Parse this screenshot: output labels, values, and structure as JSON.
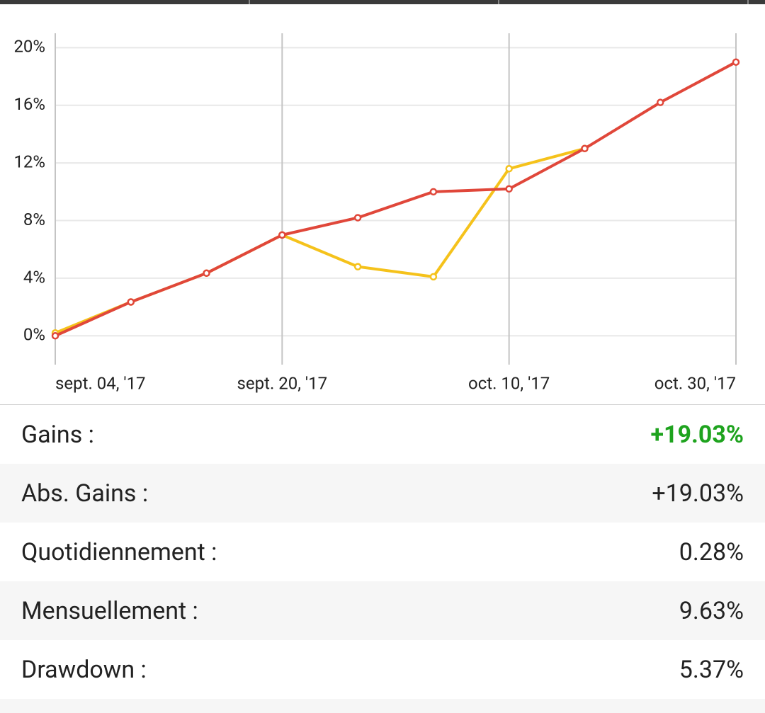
{
  "chart_data": {
    "type": "line",
    "categories": [
      "sept. 04, '17",
      null,
      null,
      "sept. 20, '17",
      null,
      null,
      "oct. 10, '17",
      null,
      null,
      "oct. 30, '17"
    ],
    "series": [
      {
        "color": "#f5c21b",
        "values": [
          0.2,
          2.35,
          4.35,
          7.0,
          4.8,
          4.1,
          11.6,
          13.0,
          null,
          null
        ]
      },
      {
        "color": "#e0473a",
        "values": [
          0,
          2.35,
          4.35,
          7.0,
          8.2,
          10.0,
          10.2,
          13.0,
          16.2,
          19.0
        ]
      }
    ],
    "ylim": [
      -2,
      21
    ],
    "yticks": [
      {
        "value": 0,
        "label": "0%"
      },
      {
        "value": 4,
        "label": "4%"
      },
      {
        "value": 8,
        "label": "8%"
      },
      {
        "value": 12,
        "label": "12%"
      },
      {
        "value": 16,
        "label": "16%"
      },
      {
        "value": 20,
        "label": "20%"
      }
    ],
    "grid": true
  },
  "stats": {
    "rows": [
      {
        "label": "Gains :",
        "value": "+19.03%",
        "color": "#1ea31e"
      },
      {
        "label": "Abs. Gains :",
        "value": "+19.03%"
      },
      {
        "label": "Quotidiennement :",
        "value": "0.28%"
      },
      {
        "label": "Mensuellement :",
        "value": "9.63%"
      },
      {
        "label": "Drawdown :",
        "value": "5.37%"
      }
    ]
  }
}
